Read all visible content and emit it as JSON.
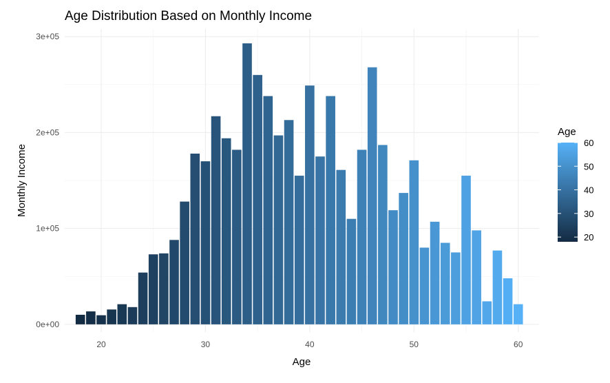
{
  "chart_data": {
    "type": "bar",
    "title": "Age Distribution Based on Monthly Income",
    "xlabel": "Age",
    "ylabel": "Monthly Income",
    "xlim": [
      16.5,
      62
    ],
    "ylim": [
      -8000,
      308000
    ],
    "x_ticks": [
      20,
      30,
      40,
      50,
      60
    ],
    "y_ticks": [
      0,
      100000,
      200000,
      300000
    ],
    "y_tick_labels": [
      "0e+00",
      "1e+05",
      "2e+05",
      "3e+05"
    ],
    "grid": true,
    "legend": {
      "title": "Age",
      "position": "right",
      "ticks": [
        20,
        30,
        40,
        50,
        60
      ],
      "range": [
        18,
        60
      ],
      "color_low": "#132B43",
      "color_high": "#56B1F7"
    },
    "x": [
      18,
      19,
      20,
      21,
      22,
      23,
      24,
      25,
      26,
      27,
      28,
      29,
      30,
      31,
      32,
      33,
      34,
      35,
      36,
      37,
      38,
      39,
      40,
      41,
      42,
      43,
      44,
      45,
      46,
      47,
      48,
      49,
      50,
      51,
      52,
      53,
      54,
      55,
      56,
      57,
      58,
      59,
      60
    ],
    "values": [
      10000,
      13500,
      9500,
      15500,
      21000,
      18000,
      54000,
      73000,
      74000,
      88000,
      128000,
      178000,
      170000,
      217000,
      194000,
      182000,
      293000,
      260000,
      238000,
      197000,
      213000,
      155000,
      249000,
      175000,
      238000,
      161000,
      110000,
      182000,
      268000,
      187000,
      119000,
      137000,
      171000,
      80000,
      107000,
      85000,
      75000,
      155000,
      98000,
      24000,
      77000,
      48000,
      21000
    ]
  }
}
